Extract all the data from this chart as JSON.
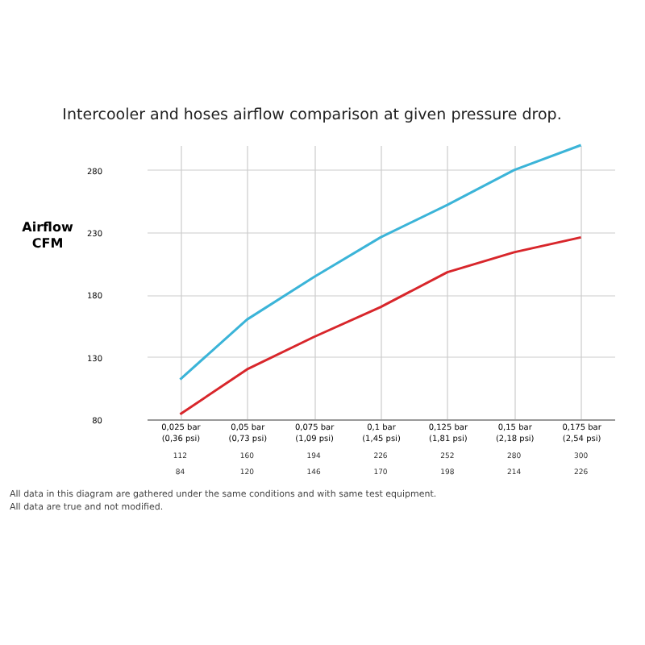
{
  "chart_data": {
    "type": "line",
    "title": "Intercooler and hoses airflow comparison at given pressure drop.",
    "ylabel": "Airflow CFM",
    "categories": [
      "0,025 bar (0,36 psi)",
      "0,05 bar (0,73 psi)",
      "0,075 bar (1,09 psi)",
      "0,1 bar (1,45 psi)",
      "0,125 bar (1,81 psi)",
      "0,15 bar (2,18 psi)",
      "0,175 bar (2,54 psi)"
    ],
    "series": [
      {
        "color": "#3bb4d8",
        "values": [
          112,
          160,
          194,
          226,
          252,
          280,
          300
        ]
      },
      {
        "color": "#d8262b",
        "values": [
          84,
          120,
          146,
          170,
          198,
          214,
          226
        ]
      }
    ],
    "ylim": [
      80,
      300
    ],
    "yticks": [
      80,
      130,
      180,
      230,
      280
    ],
    "grid": true,
    "data_labels": true,
    "marker": "none",
    "line_style": "solid",
    "annotations": [
      "All data in this diagram are gathered under the same conditions and with same test equipment.",
      "All data are true and not modified."
    ]
  }
}
